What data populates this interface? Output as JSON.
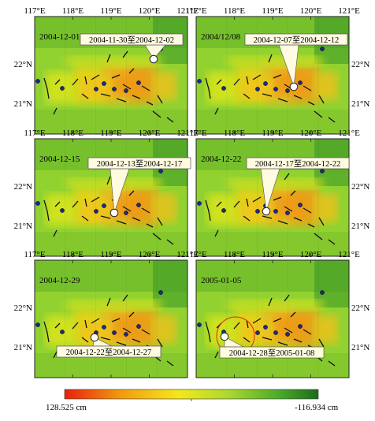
{
  "axes": {
    "lon_labels": [
      "117°E",
      "118°E",
      "119°E",
      "120°E",
      "121°E"
    ],
    "lat_labels": [
      "22°N",
      "21°N"
    ]
  },
  "panels": [
    {
      "date": "2004-12-01",
      "callout": "2004-11-30至2004-12-02"
    },
    {
      "date": "2004/12/08",
      "callout": "2004-12-07至2004-12-12"
    },
    {
      "date": "2004-12-15",
      "callout": "2004-12-13至2004-12-17"
    },
    {
      "date": "2004-12-22",
      "callout": "2004-12-17至2004-12-22"
    },
    {
      "date": "2004-12-29",
      "callout": "2004-12-22至2004-12-27"
    },
    {
      "date": "2005-01-05",
      "callout": "2004-12-28至2005-01-08"
    }
  ],
  "colorbar": {
    "min_label": "128.525 cm",
    "max_label": "-116.934 cm",
    "colors": [
      "#e8200a",
      "#f29a10",
      "#f4e81c",
      "#a9d830",
      "#4aa82a",
      "#1e6a1a"
    ]
  }
}
